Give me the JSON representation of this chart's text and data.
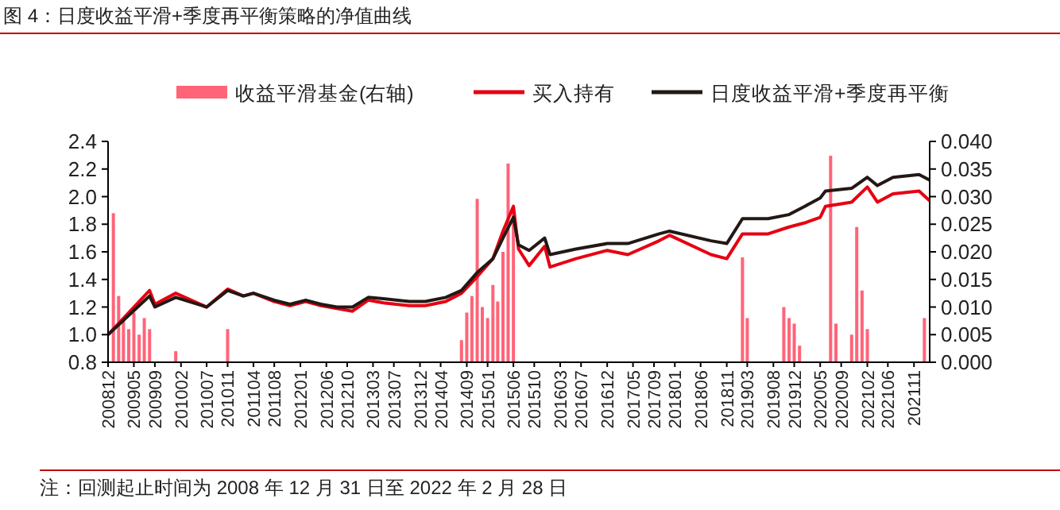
{
  "chart_data": {
    "type": "line",
    "title": "图 4：日度收益平滑+季度再平衡策略的净值曲线",
    "annotations": [
      "注：回测起止时间为 2008 年 12 月 31 日至 2022 年 2 月 28 日"
    ],
    "legend": "top",
    "grid": false,
    "xlim": [
      "2008-12",
      "2022-02"
    ],
    "xticks": [
      {
        "value": "2008-12",
        "label": "200812"
      },
      {
        "value": "2009-05",
        "label": "200905"
      },
      {
        "value": "2009-09",
        "label": "200909"
      },
      {
        "value": "2010-02",
        "label": "201002"
      },
      {
        "value": "2010-07",
        "label": "201007"
      },
      {
        "value": "2010-11",
        "label": "201011"
      },
      {
        "value": "2011-04",
        "label": "201104"
      },
      {
        "value": "2011-08",
        "label": "201108"
      },
      {
        "value": "2012-01",
        "label": "201201"
      },
      {
        "value": "2012-06",
        "label": "201206"
      },
      {
        "value": "2012-10",
        "label": "201210"
      },
      {
        "value": "2013-03",
        "label": "201303"
      },
      {
        "value": "2013-07",
        "label": "201307"
      },
      {
        "value": "2013-12",
        "label": "201312"
      },
      {
        "value": "2014-04",
        "label": "201404"
      },
      {
        "value": "2014-09",
        "label": "201409"
      },
      {
        "value": "2015-01",
        "label": "201501"
      },
      {
        "value": "2015-06",
        "label": "201506"
      },
      {
        "value": "2015-10",
        "label": "201510"
      },
      {
        "value": "2016-03",
        "label": "201603"
      },
      {
        "value": "2016-07",
        "label": "201607"
      },
      {
        "value": "2016-12",
        "label": "201612"
      },
      {
        "value": "2017-05",
        "label": "201705"
      },
      {
        "value": "2017-09",
        "label": "201709"
      },
      {
        "value": "2018-01",
        "label": "201801"
      },
      {
        "value": "2018-06",
        "label": "201806"
      },
      {
        "value": "2018-11",
        "label": "201811"
      },
      {
        "value": "2019-03",
        "label": "201903"
      },
      {
        "value": "2019-08",
        "label": "201908"
      },
      {
        "value": "2019-12",
        "label": "201912"
      },
      {
        "value": "2020-05",
        "label": "202005"
      },
      {
        "value": "2020-09",
        "label": "202009"
      },
      {
        "value": "2021-02",
        "label": "202102"
      },
      {
        "value": "2021-06",
        "label": "202106"
      },
      {
        "value": "2021-11",
        "label": "202111"
      }
    ],
    "ylim": [
      0.8,
      2.4
    ],
    "yticks": [
      {
        "value": 0.8,
        "label": "0.8"
      },
      {
        "value": 1.0,
        "label": "1.0"
      },
      {
        "value": 1.2,
        "label": "1.2"
      },
      {
        "value": 1.4,
        "label": "1.4"
      },
      {
        "value": 1.6,
        "label": "1.6"
      },
      {
        "value": 1.8,
        "label": "1.8"
      },
      {
        "value": 2.0,
        "label": "2.0"
      },
      {
        "value": 2.2,
        "label": "2.2"
      },
      {
        "value": 2.4,
        "label": "2.4"
      }
    ],
    "y2lim": [
      0,
      0.04
    ],
    "y2ticks": [
      {
        "value": 0,
        "label": "0.000"
      },
      {
        "value": 0.005,
        "label": "0.005"
      },
      {
        "value": 0.01,
        "label": "0.010"
      },
      {
        "value": 0.015,
        "label": "0.015"
      },
      {
        "value": 0.02,
        "label": "0.020"
      },
      {
        "value": 0.025,
        "label": "0.025"
      },
      {
        "value": 0.03,
        "label": "0.030"
      },
      {
        "value": 0.035,
        "label": "0.035"
      },
      {
        "value": 0.04,
        "label": "0.040"
      }
    ],
    "series": [
      {
        "name": "收益平滑基金(右轴)",
        "type": "bar",
        "axis": "y2",
        "color": "#ff6478",
        "x": [
          "2009-01",
          "2009-02",
          "2009-03",
          "2009-04",
          "2009-05",
          "2009-06",
          "2009-07",
          "2009-08",
          "2010-01",
          "2010-11",
          "2014-08",
          "2014-09",
          "2014-10",
          "2014-11",
          "2014-12",
          "2015-01",
          "2015-02",
          "2015-03",
          "2015-04",
          "2015-05",
          "2015-06",
          "2019-02",
          "2019-03",
          "2019-10",
          "2019-11",
          "2019-12",
          "2020-01",
          "2020-07",
          "2020-08",
          "2020-11",
          "2020-12",
          "2021-01",
          "2021-02",
          "2022-01"
        ],
        "values": [
          0.027,
          0.012,
          0.008,
          0.006,
          0.009,
          0.005,
          0.008,
          0.006,
          0.002,
          0.006,
          0.004,
          0.009,
          0.012,
          0.0296,
          0.01,
          0.008,
          0.014,
          0.011,
          0.02,
          0.036,
          0.028,
          0.019,
          0.008,
          0.01,
          0.008,
          0.007,
          0.003,
          0.0374,
          0.007,
          0.005,
          0.0245,
          0.013,
          0.006,
          0.008
        ]
      },
      {
        "name": "买入持有",
        "color": "#e60012",
        "x": [
          "2008-12",
          "2009-08",
          "2009-09",
          "2010-01",
          "2010-07",
          "2010-11",
          "2011-02",
          "2011-04",
          "2011-08",
          "2011-11",
          "2012-02",
          "2012-05",
          "2012-08",
          "2012-11",
          "2013-02",
          "2013-05",
          "2013-10",
          "2014-01",
          "2014-05",
          "2014-08",
          "2014-11",
          "2015-02",
          "2015-04",
          "2015-06",
          "2015-07",
          "2015-09",
          "2015-12",
          "2016-01",
          "2016-06",
          "2016-12",
          "2017-04",
          "2017-10",
          "2017-12",
          "2018-08",
          "2018-11",
          "2019-02",
          "2019-07",
          "2019-11",
          "2020-02",
          "2020-05",
          "2020-06",
          "2020-11",
          "2021-02",
          "2021-04",
          "2021-07",
          "2021-12",
          "2022-02"
        ],
        "values": [
          1.0,
          1.32,
          1.22,
          1.3,
          1.2,
          1.33,
          1.28,
          1.3,
          1.24,
          1.21,
          1.24,
          1.21,
          1.19,
          1.17,
          1.25,
          1.23,
          1.21,
          1.21,
          1.24,
          1.3,
          1.42,
          1.55,
          1.75,
          1.93,
          1.62,
          1.5,
          1.64,
          1.49,
          1.55,
          1.61,
          1.58,
          1.68,
          1.72,
          1.58,
          1.55,
          1.73,
          1.73,
          1.78,
          1.81,
          1.85,
          1.93,
          1.96,
          2.07,
          1.96,
          2.02,
          2.04,
          1.97
        ]
      },
      {
        "name": "日度收益平滑+季度再平衡",
        "color": "#231815",
        "x": [
          "2008-12",
          "2009-08",
          "2009-09",
          "2010-01",
          "2010-07",
          "2010-11",
          "2011-02",
          "2011-04",
          "2011-08",
          "2011-11",
          "2012-02",
          "2012-05",
          "2012-08",
          "2012-11",
          "2013-02",
          "2013-05",
          "2013-10",
          "2014-01",
          "2014-05",
          "2014-08",
          "2014-11",
          "2015-02",
          "2015-04",
          "2015-06",
          "2015-07",
          "2015-09",
          "2015-12",
          "2016-01",
          "2016-06",
          "2016-12",
          "2017-04",
          "2017-10",
          "2017-12",
          "2018-08",
          "2018-11",
          "2019-02",
          "2019-07",
          "2019-11",
          "2020-02",
          "2020-05",
          "2020-06",
          "2020-11",
          "2021-02",
          "2021-04",
          "2021-07",
          "2021-12",
          "2022-02"
        ],
        "values": [
          1.0,
          1.28,
          1.2,
          1.27,
          1.2,
          1.32,
          1.28,
          1.3,
          1.25,
          1.22,
          1.25,
          1.22,
          1.2,
          1.2,
          1.27,
          1.26,
          1.24,
          1.24,
          1.27,
          1.32,
          1.45,
          1.55,
          1.7,
          1.85,
          1.65,
          1.61,
          1.7,
          1.58,
          1.62,
          1.66,
          1.66,
          1.73,
          1.75,
          1.68,
          1.66,
          1.84,
          1.84,
          1.87,
          1.93,
          1.99,
          2.04,
          2.06,
          2.14,
          2.08,
          2.14,
          2.16,
          2.12
        ]
      }
    ]
  }
}
